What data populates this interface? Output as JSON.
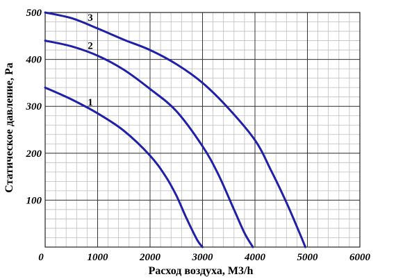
{
  "chart_data": {
    "type": "line",
    "xlabel": "Расход воздуха, М3/h",
    "ylabel": "Статическое давление, Ра",
    "xlim": [
      0,
      6000
    ],
    "ylim": [
      0,
      500
    ],
    "x_ticks": [
      "0",
      "1000",
      "2000",
      "3000",
      "4000",
      "5000",
      "6000"
    ],
    "y_ticks": [
      "100",
      "200",
      "300",
      "400",
      "500"
    ],
    "grid": {
      "major": true,
      "minor": true,
      "major_step_x": 1000,
      "minor_step_x": 200,
      "major_step_y": 100,
      "minor_step_y": 20
    },
    "series": [
      {
        "name": "1",
        "color": "#1f1fa8",
        "label_at": [
          900,
          305
        ],
        "points": [
          [
            0,
            340
          ],
          [
            500,
            315
          ],
          [
            1000,
            285
          ],
          [
            1500,
            248
          ],
          [
            2000,
            195
          ],
          [
            2300,
            150
          ],
          [
            2500,
            110
          ],
          [
            2700,
            60
          ],
          [
            2900,
            15
          ],
          [
            3000,
            0
          ]
        ]
      },
      {
        "name": "2",
        "color": "#1f1fa8",
        "label_at": [
          900,
          425
        ],
        "points": [
          [
            0,
            440
          ],
          [
            500,
            428
          ],
          [
            1000,
            408
          ],
          [
            1500,
            378
          ],
          [
            2000,
            337
          ],
          [
            2500,
            290
          ],
          [
            3000,
            215
          ],
          [
            3300,
            155
          ],
          [
            3600,
            80
          ],
          [
            3800,
            30
          ],
          [
            3960,
            0
          ]
        ]
      },
      {
        "name": "3",
        "color": "#1f1fa8",
        "label_at": [
          900,
          485
        ],
        "points": [
          [
            0,
            500
          ],
          [
            500,
            488
          ],
          [
            1000,
            466
          ],
          [
            1500,
            442
          ],
          [
            2000,
            420
          ],
          [
            2500,
            390
          ],
          [
            3000,
            350
          ],
          [
            3500,
            295
          ],
          [
            4000,
            228
          ],
          [
            4300,
            165
          ],
          [
            4600,
            95
          ],
          [
            4850,
            30
          ],
          [
            4960,
            0
          ]
        ]
      }
    ]
  }
}
